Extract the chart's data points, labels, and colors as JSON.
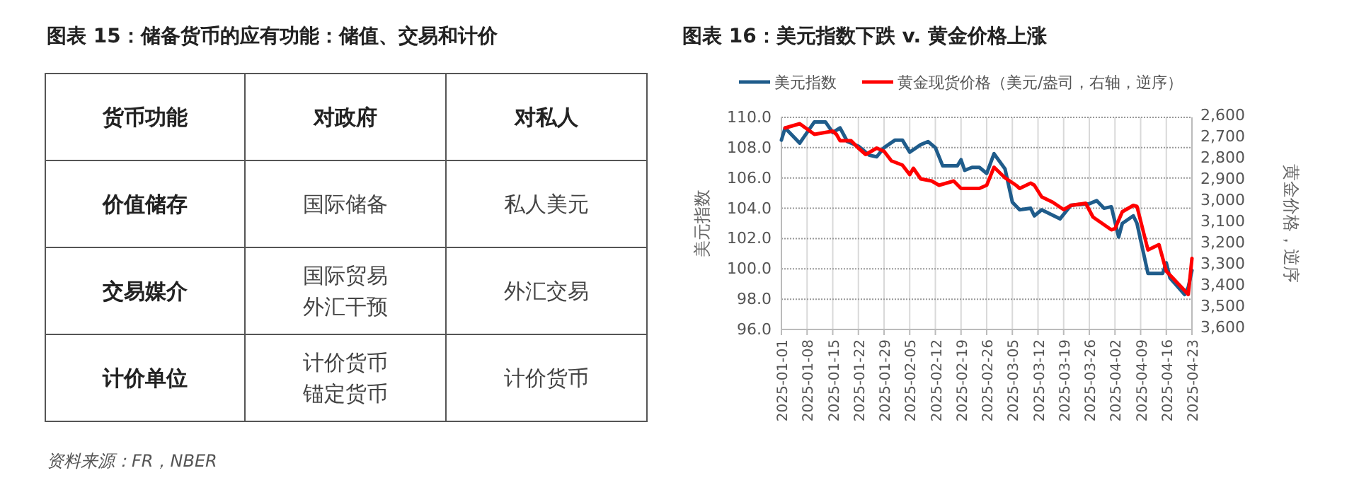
{
  "chart_data": [
    {
      "type": "other",
      "title": "图表 15：储备货币的应有功能：储值、交易和计价",
      "annotations": [
        "货币功能",
        "对政府",
        "对私人",
        "价值储存",
        "国际储备",
        "私人美元",
        "交易媒介",
        "国际贸易外汇干预",
        "外汇交易",
        "计价单位",
        "计价货币锚定货币",
        "计价货币",
        "资料来源：FR，NBER"
      ]
    },
    {
      "type": "line",
      "title": "图表 16：美元指数下跌 v.  黄金价格上涨",
      "ylabel": "美元指数",
      "y2label": "黄金价格，逆序",
      "xlim": [
        "2025-01-01",
        "2025-04-23"
      ],
      "xticks": [
        "2025-01-01",
        "2025-01-08",
        "2025-01-15",
        "2025-01-22",
        "2025-01-29",
        "2025-02-05",
        "2025-02-12",
        "2025-02-19",
        "2025-02-26",
        "2025-03-05",
        "2025-03-12",
        "2025-03-19",
        "2025-03-26",
        "2025-04-02",
        "2025-04-09",
        "2025-04-16",
        "2025-04-23"
      ],
      "ylim": [
        96,
        110
      ],
      "yticks": [
        {
          "value": 96,
          "label": "96.0"
        },
        {
          "value": 98,
          "label": "98.0"
        },
        {
          "value": 100,
          "label": "100.0"
        },
        {
          "value": 102,
          "label": "102.0"
        },
        {
          "value": 104,
          "label": "104.0"
        },
        {
          "value": 106,
          "label": "106.0"
        },
        {
          "value": 108,
          "label": "108.0"
        },
        {
          "value": 110,
          "label": "110.0"
        }
      ],
      "y2lim": [
        3600,
        2600
      ],
      "y2ticks": [
        {
          "value": 2600,
          "label": "2,600"
        },
        {
          "value": 2700,
          "label": "2,700"
        },
        {
          "value": 2800,
          "label": "2,800"
        },
        {
          "value": 2900,
          "label": "2,900"
        },
        {
          "value": 3000,
          "label": "3,000"
        },
        {
          "value": 3100,
          "label": "3,100"
        },
        {
          "value": 3200,
          "label": "3,200"
        },
        {
          "value": 3300,
          "label": "3,300"
        },
        {
          "value": 3400,
          "label": "3,400"
        },
        {
          "value": 3500,
          "label": "3,500"
        },
        {
          "value": 3600,
          "label": "3,600"
        }
      ],
      "grid": true,
      "legend": "top",
      "series": [
        {
          "name": "美元指数",
          "color": "#1f5c8b",
          "x": [
            "2025-01-01",
            "2025-01-02",
            "2025-01-06",
            "2025-01-10",
            "2025-01-13",
            "2025-01-15",
            "2025-01-17",
            "2025-01-19",
            "2025-01-22",
            "2025-01-25",
            "2025-01-27",
            "2025-01-29",
            "2025-02-01",
            "2025-02-03",
            "2025-02-05",
            "2025-02-08",
            "2025-02-10",
            "2025-02-12",
            "2025-02-14",
            "2025-02-18",
            "2025-02-19",
            "2025-02-20",
            "2025-02-22",
            "2025-02-24",
            "2025-02-26",
            "2025-02-28",
            "2025-03-03",
            "2025-03-05",
            "2025-03-07",
            "2025-03-10",
            "2025-03-11",
            "2025-03-13",
            "2025-03-18",
            "2025-03-21",
            "2025-03-26",
            "2025-03-28",
            "2025-03-30",
            "2025-04-01",
            "2025-04-03",
            "2025-04-04",
            "2025-04-07",
            "2025-04-08",
            "2025-04-11",
            "2025-04-15",
            "2025-04-16",
            "2025-04-17",
            "2025-04-21",
            "2025-04-22",
            "2025-04-23"
          ],
          "values": [
            108.5,
            109.3,
            108.3,
            109.7,
            109.7,
            109.0,
            109.3,
            108.4,
            108.1,
            107.5,
            107.4,
            108.0,
            108.5,
            108.5,
            107.7,
            108.2,
            108.4,
            108.0,
            106.8,
            106.8,
            107.2,
            106.5,
            106.7,
            106.7,
            106.3,
            107.6,
            106.6,
            104.4,
            103.9,
            104.0,
            103.5,
            103.9,
            103.3,
            104.2,
            104.3,
            104.5,
            104.0,
            104.1,
            102.1,
            103.0,
            103.5,
            103.0,
            99.7,
            99.7,
            100.4,
            99.4,
            98.3,
            98.8,
            99.9
          ]
        },
        {
          "name": "黄金现货价格（美元/盎司，右轴，逆序）",
          "color": "#ff0000",
          "axis": "y2",
          "x": [
            "2025-01-02",
            "2025-01-06",
            "2025-01-10",
            "2025-01-15",
            "2025-01-16",
            "2025-01-17",
            "2025-01-20",
            "2025-01-22",
            "2025-01-24",
            "2025-01-27",
            "2025-01-29",
            "2025-01-31",
            "2025-02-03",
            "2025-02-05",
            "2025-02-06",
            "2025-02-08",
            "2025-02-11",
            "2025-02-13",
            "2025-02-17",
            "2025-02-19",
            "2025-02-24",
            "2025-02-26",
            "2025-02-28",
            "2025-03-03",
            "2025-03-06",
            "2025-03-07",
            "2025-03-10",
            "2025-03-11",
            "2025-03-13",
            "2025-03-16",
            "2025-03-19",
            "2025-03-21",
            "2025-03-25",
            "2025-03-27",
            "2025-04-01",
            "2025-04-02",
            "2025-04-04",
            "2025-04-07",
            "2025-04-08",
            "2025-04-11",
            "2025-04-14",
            "2025-04-16",
            "2025-04-22",
            "2025-04-23"
          ],
          "values": [
            2650,
            2630,
            2680,
            2665,
            2680,
            2710,
            2710,
            2745,
            2775,
            2745,
            2760,
            2805,
            2825,
            2870,
            2840,
            2890,
            2900,
            2920,
            2900,
            2935,
            2935,
            2920,
            2835,
            2885,
            2920,
            2935,
            2910,
            2920,
            2975,
            3000,
            3035,
            3015,
            3005,
            3070,
            3130,
            3125,
            3045,
            3015,
            3020,
            3225,
            3200,
            3325,
            3435,
            3265
          ]
        }
      ]
    }
  ]
}
